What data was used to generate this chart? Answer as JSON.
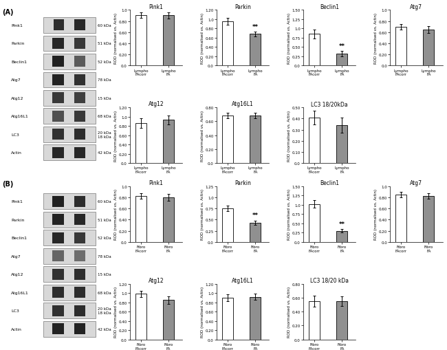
{
  "panel_A": {
    "wb_labels": [
      "Pink1",
      "Parkin",
      "Beclin1",
      "Atg7",
      "Atg12",
      "Atg16L1",
      "LC3",
      "Actin"
    ],
    "wb_kda": [
      "60 kDa",
      "51 kDa",
      "52 kDa",
      "78 kDa",
      "15 kDa",
      "68 kDa",
      "20 kDa\n18 kDa",
      "42 kDa"
    ],
    "bars_row1": [
      {
        "title": "Pink1",
        "ylim": [
          0,
          1.0
        ],
        "yticks": [
          0.0,
          0.2,
          0.4,
          0.6,
          0.8,
          1.0
        ],
        "bar1": 0.9,
        "bar1_err": 0.05,
        "bar2": 0.9,
        "bar2_err": 0.06,
        "sig": "",
        "xlabel1": "Lympho\nFAcorr",
        "xlabel2": "Lympho\nFA"
      },
      {
        "title": "Parkin",
        "ylim": [
          0,
          1.2
        ],
        "yticks": [
          0.0,
          0.2,
          0.4,
          0.6,
          0.8,
          1.0,
          1.2
        ],
        "bar1": 0.95,
        "bar1_err": 0.07,
        "bar2": 0.68,
        "bar2_err": 0.05,
        "sig": "**",
        "xlabel1": "Lympho\nFAcorr",
        "xlabel2": "Lympho\nFA"
      },
      {
        "title": "Beclin1",
        "ylim": [
          0,
          1.5
        ],
        "yticks": [
          0.0,
          0.25,
          0.5,
          0.75,
          1.0,
          1.25,
          1.5
        ],
        "bar1": 0.85,
        "bar1_err": 0.12,
        "bar2": 0.32,
        "bar2_err": 0.07,
        "sig": "**",
        "xlabel1": "Lympho\nFAcorr",
        "xlabel2": "Lympho\nFA"
      },
      {
        "title": "Atg7",
        "ylim": [
          0,
          1.0
        ],
        "yticks": [
          0.0,
          0.2,
          0.4,
          0.6,
          0.8,
          1.0
        ],
        "bar1": 0.7,
        "bar1_err": 0.05,
        "bar2": 0.65,
        "bar2_err": 0.06,
        "sig": "",
        "xlabel1": "Lympho\nFAcorr",
        "xlabel2": "Lympho\nFA"
      }
    ],
    "bars_row2": [
      {
        "title": "Atg12",
        "ylim": [
          0,
          1.2
        ],
        "yticks": [
          0.0,
          0.2,
          0.4,
          0.6,
          0.8,
          1.0,
          1.2
        ],
        "bar1": 0.86,
        "bar1_err": 0.1,
        "bar2": 0.93,
        "bar2_err": 0.09,
        "sig": "",
        "xlabel1": "Lympho\nFAcorr",
        "xlabel2": "Lympho\nFA"
      },
      {
        "title": "Atg16L1",
        "ylim": [
          0,
          0.8
        ],
        "yticks": [
          0.0,
          0.2,
          0.4,
          0.6,
          0.8
        ],
        "bar1": 0.68,
        "bar1_err": 0.04,
        "bar2": 0.68,
        "bar2_err": 0.04,
        "sig": "",
        "xlabel1": "Lympho\nFAcorr",
        "xlabel2": "Lympho\nFA"
      },
      {
        "title": "LC3 18/20kDa",
        "ylim": [
          0,
          0.5
        ],
        "yticks": [
          0.0,
          0.1,
          0.2,
          0.3,
          0.4,
          0.5
        ],
        "bar1": 0.41,
        "bar1_err": 0.06,
        "bar2": 0.34,
        "bar2_err": 0.07,
        "sig": "",
        "xlabel1": "Lympho\nFAcorr",
        "xlabel2": "Lympho\nFA"
      }
    ]
  },
  "panel_B": {
    "wb_labels": [
      "Pink1",
      "Parkin",
      "Beclin1",
      "Atg7",
      "Atg12",
      "Atg16L1",
      "LC3",
      "Actin"
    ],
    "wb_kda": [
      "60 kDa",
      "51 kDa",
      "52 kDa",
      "78 kDa",
      "15 kDa",
      "68 kDa",
      "20 kDa\n18 kDa",
      "42 kDa"
    ],
    "bars_row1": [
      {
        "title": "Pink1",
        "ylim": [
          0,
          1.0
        ],
        "yticks": [
          0.0,
          0.2,
          0.4,
          0.6,
          0.8,
          1.0
        ],
        "bar1": 0.82,
        "bar1_err": 0.05,
        "bar2": 0.8,
        "bar2_err": 0.06,
        "sig": "",
        "xlabel1": "Fibro\nFAcorr",
        "xlabel2": "Fibro\nFA"
      },
      {
        "title": "Parkin",
        "ylim": [
          0,
          1.25
        ],
        "yticks": [
          0.0,
          0.25,
          0.5,
          0.75,
          1.0,
          1.25
        ],
        "bar1": 0.75,
        "bar1_err": 0.06,
        "bar2": 0.43,
        "bar2_err": 0.05,
        "sig": "**",
        "xlabel1": "Fibro\nFAcorr",
        "xlabel2": "Fibro\nFA"
      },
      {
        "title": "Beclin1",
        "ylim": [
          0,
          1.5
        ],
        "yticks": [
          0.0,
          0.25,
          0.5,
          0.75,
          1.0,
          1.25,
          1.5
        ],
        "bar1": 1.02,
        "bar1_err": 0.1,
        "bar2": 0.3,
        "bar2_err": 0.05,
        "sig": "**",
        "xlabel1": "Fibro\nFAcorr",
        "xlabel2": "Fibro\nFA"
      },
      {
        "title": "Atg7",
        "ylim": [
          0,
          1.0
        ],
        "yticks": [
          0.0,
          0.2,
          0.4,
          0.6,
          0.8,
          1.0
        ],
        "bar1": 0.85,
        "bar1_err": 0.05,
        "bar2": 0.82,
        "bar2_err": 0.05,
        "sig": "",
        "xlabel1": "Fibro\nFAcorr",
        "xlabel2": "Fibro\nFA"
      }
    ],
    "bars_row2": [
      {
        "title": "Atg12",
        "ylim": [
          0,
          1.2
        ],
        "yticks": [
          0.0,
          0.2,
          0.4,
          0.6,
          0.8,
          1.0,
          1.2
        ],
        "bar1": 0.98,
        "bar1_err": 0.07,
        "bar2": 0.85,
        "bar2_err": 0.08,
        "sig": "",
        "xlabel1": "Fibro\nFAcorr",
        "xlabel2": "Fibro\nFA"
      },
      {
        "title": "Atg16L1",
        "ylim": [
          0,
          1.2
        ],
        "yticks": [
          0.0,
          0.2,
          0.4,
          0.6,
          0.8,
          1.0,
          1.2
        ],
        "bar1": 0.9,
        "bar1_err": 0.07,
        "bar2": 0.92,
        "bar2_err": 0.07,
        "sig": "",
        "xlabel1": "Fibro\nFAcorr",
        "xlabel2": "Fibro\nFA"
      },
      {
        "title": "LC3 18/20 kDa",
        "ylim": [
          0,
          0.8
        ],
        "yticks": [
          0.0,
          0.2,
          0.4,
          0.6,
          0.8
        ],
        "bar1": 0.55,
        "bar1_err": 0.08,
        "bar2": 0.55,
        "bar2_err": 0.07,
        "sig": "",
        "xlabel1": "Fibro\nFAcorr",
        "xlabel2": "Fibro\nFA"
      }
    ]
  },
  "bar_color_open": "#ffffff",
  "bar_color_filled": "#909090",
  "bar_edge_color": "#000000",
  "ylabel": "ROD (normalised vs. Actin)",
  "ylabel_fontsize": 4.0,
  "title_fontsize": 5.5,
  "tick_fontsize": 4.0,
  "xlabel_fontsize": 4.0,
  "sig_fontsize": 6,
  "bar_width": 0.4,
  "background_color": "#ffffff"
}
